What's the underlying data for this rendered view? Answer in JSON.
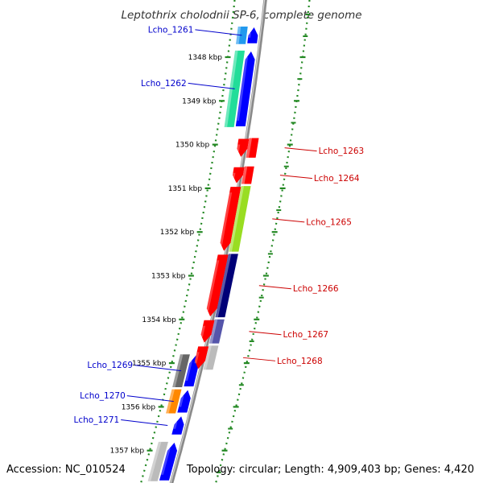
{
  "title": "Leptothrix cholodnii SP-6, complete genome",
  "footer": {
    "accession": "Accession: NC_010524",
    "summary": "Topology: circular; Length: 4,909,403 bp; Genes: 4,420"
  },
  "colors": {
    "forward_label": "#0000cc",
    "reverse_label": "#cc0000",
    "backbone": "#888888",
    "ruler": "#228822",
    "cds_forward": "#0000ff",
    "cds_reverse": "#ff0000"
  },
  "ticks": [
    {
      "kbp": 1348,
      "label": "1348 kbp"
    },
    {
      "kbp": 1349,
      "label": "1349 kbp"
    },
    {
      "kbp": 1350,
      "label": "1350 kbp"
    },
    {
      "kbp": 1351,
      "label": "1351 kbp"
    },
    {
      "kbp": 1352,
      "label": "1352 kbp"
    },
    {
      "kbp": 1353,
      "label": "1353 kbp"
    },
    {
      "kbp": 1354,
      "label": "1354 kbp"
    },
    {
      "kbp": 1355,
      "label": "1355 kbp"
    },
    {
      "kbp": 1356,
      "label": "1356 kbp"
    },
    {
      "kbp": 1357,
      "label": "1357 kbp"
    }
  ],
  "genes": [
    {
      "name": "Lcho_1261",
      "strand": "+",
      "start_kbp": 1347.3,
      "end_kbp": 1347.7,
      "color": "#2299ee"
    },
    {
      "name": "Lcho_1262",
      "strand": "+",
      "start_kbp": 1347.85,
      "end_kbp": 1349.6,
      "color": "#22dd99"
    },
    {
      "name": "Lcho_1263",
      "strand": "-",
      "start_kbp": 1349.85,
      "end_kbp": 1350.3,
      "color": "#ff0000"
    },
    {
      "name": "Lcho_1264",
      "strand": "-",
      "start_kbp": 1350.5,
      "end_kbp": 1350.9,
      "color": "#ff0000"
    },
    {
      "name": "Lcho_1265",
      "strand": "-",
      "start_kbp": 1350.95,
      "end_kbp": 1352.45,
      "color": "#99dd22"
    },
    {
      "name": "Lcho_1266",
      "strand": "-",
      "start_kbp": 1352.5,
      "end_kbp": 1353.95,
      "color": "#000077"
    },
    {
      "name": "Lcho_1267",
      "strand": "-",
      "start_kbp": 1354.0,
      "end_kbp": 1354.55,
      "color": "#5555aa"
    },
    {
      "name": "Lcho_1268",
      "strand": "-",
      "start_kbp": 1354.6,
      "end_kbp": 1355.15,
      "color": "#bbbbbb"
    },
    {
      "name": "Lcho_1269",
      "strand": "+",
      "start_kbp": 1354.8,
      "end_kbp": 1355.55,
      "color": "#666666"
    },
    {
      "name": "Lcho_1270",
      "strand": "+",
      "start_kbp": 1355.6,
      "end_kbp": 1356.15,
      "color": "#ff8800"
    },
    {
      "name": "Lcho_1271",
      "strand": "+",
      "start_kbp": 1356.2,
      "end_kbp": 1356.65,
      "color": "#ffffff"
    },
    {
      "name": "",
      "strand": "+",
      "start_kbp": 1356.8,
      "end_kbp": 1357.7,
      "color": "#bbbbbb"
    }
  ]
}
